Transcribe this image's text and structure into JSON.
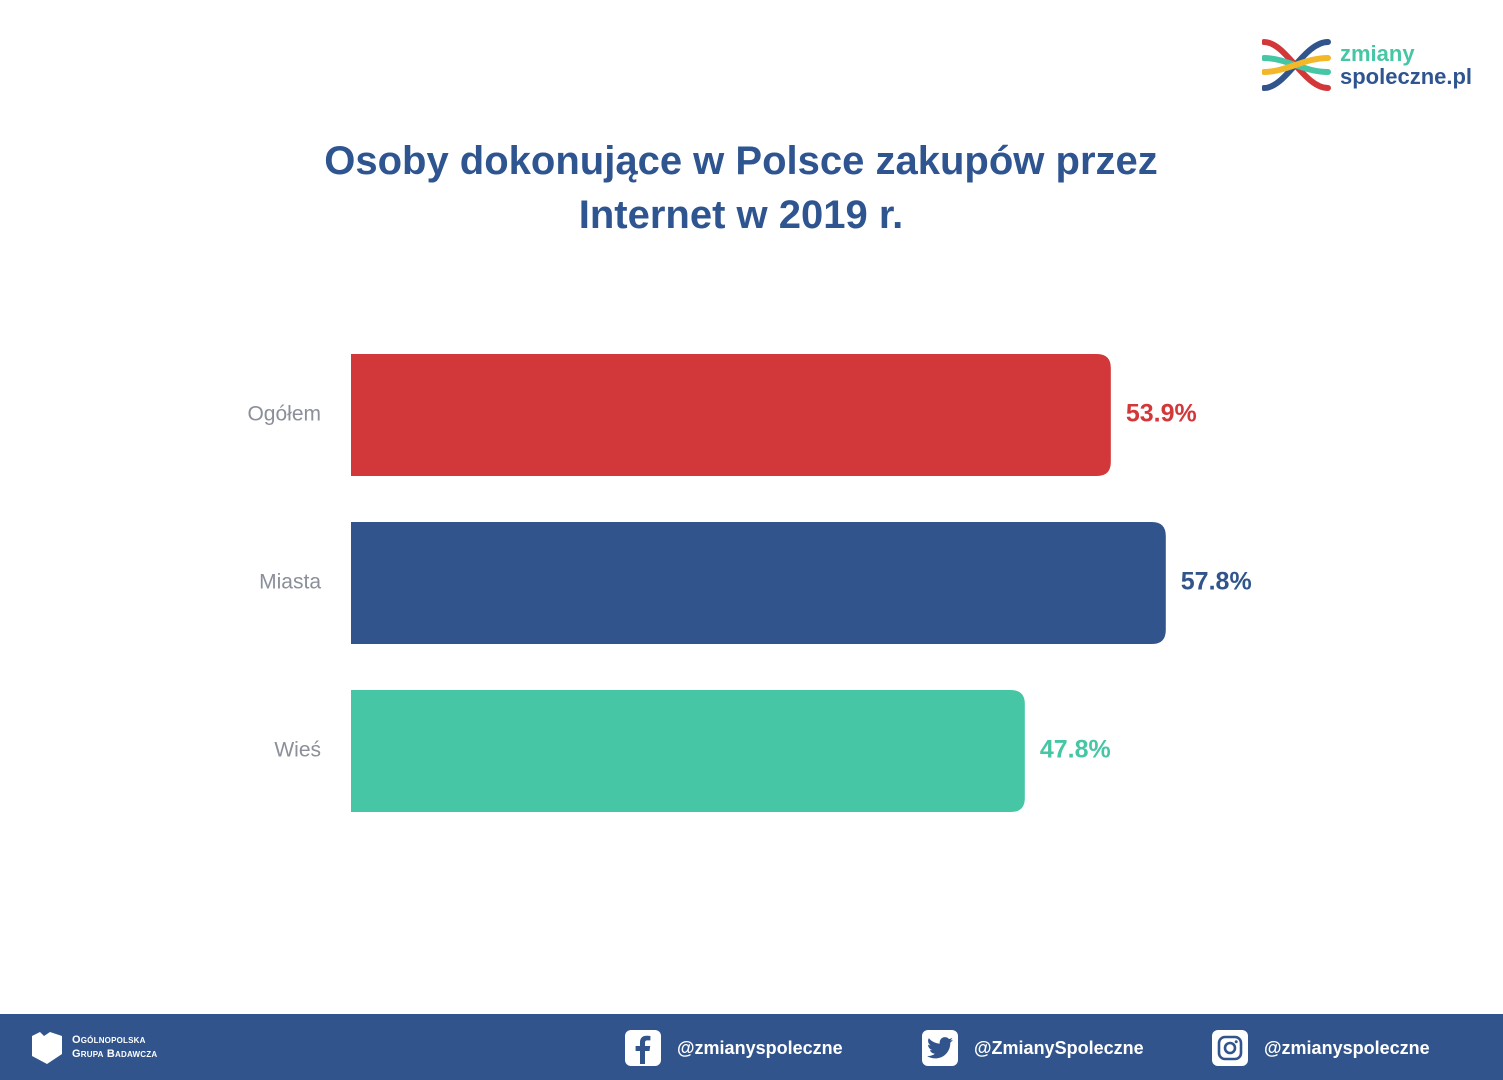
{
  "brand": {
    "line1": "zmiany",
    "line2": "spoleczne.pl"
  },
  "title": "Osoby dokonujące w Polsce zakupów przez Internet w 2019 r.",
  "chart_data": {
    "type": "bar",
    "orientation": "horizontal",
    "title": "Osoby dokonujące w Polsce zakupów przez Internet w 2019 r.",
    "categories": [
      "Ogółem",
      "Miasta",
      "Wieś"
    ],
    "values": [
      53.9,
      57.8,
      47.8
    ],
    "value_labels": [
      "53.9%",
      "57.8%",
      "47.8%"
    ],
    "colors": [
      "#d2383a",
      "#30548b",
      "#47c6a5"
    ],
    "unit": "%",
    "xlim": [
      0,
      62
    ],
    "grid": false,
    "legend": "none"
  },
  "footer": {
    "org_line1": "Ogólnopolska",
    "org_line2": "Grupa Badawcza",
    "facebook": "@zmianyspoleczne",
    "twitter": "@ZmianySpoleczne",
    "instagram": "@zmianyspoleczne"
  }
}
